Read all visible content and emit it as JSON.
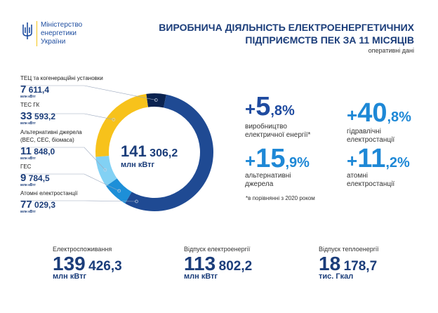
{
  "header": {
    "logo_lines": [
      "Міністерство",
      "енергетики",
      "України"
    ],
    "title_lines": [
      "ВИРОБНИЧА ДІЯЛЬНІСТЬ ЕЛЕКТРОЕНЕРГЕТИЧНИХ",
      "ПІДПРИЄМСТВ ПЕК ЗА 11 МІСЯЦІВ"
    ],
    "subtitle": "оперативні дані"
  },
  "chart_data": {
    "type": "pie",
    "variant": "donut",
    "center_value_big": "141",
    "center_value_small": "306,2",
    "center_unit": "млн кВтг",
    "unit": "млн кВтг",
    "slices": [
      {
        "label": "ТЕЦ та когенераційні установки",
        "value": 7611.4,
        "big": "7",
        "small": "611,4",
        "color": "#0b2350"
      },
      {
        "label": "Атомні електростанції",
        "value": 77029.3,
        "big": "77",
        "small": "029,3",
        "color": "#1f4a93"
      },
      {
        "label": "ГЕС",
        "value": 9784.5,
        "big": "9",
        "small": "784,5",
        "color": "#1d8fd8"
      },
      {
        "label": "Альтернативні джерела",
        "label2": "(ВЕС, СЕС, біомаса)",
        "value": 11848.0,
        "big": "11",
        "small": "848,0",
        "color": "#82d1f4"
      },
      {
        "label": "ТЕС ГК",
        "value": 33593.2,
        "big": "33",
        "small": "593,2",
        "color": "#f7c21b"
      }
    ]
  },
  "growth": [
    {
      "plus": "+",
      "n": "5",
      "d": ",8%",
      "cap": [
        "виробництво",
        "електричної енергії*"
      ],
      "color": "#1f4ba0"
    },
    {
      "plus": "+",
      "n": "40",
      "d": ",8%",
      "cap": [
        "гідравлічні",
        "електростанції"
      ],
      "color": "#1e88d6"
    },
    {
      "plus": "+",
      "n": "15",
      "d": ",9%",
      "cap": [
        "альтернативні",
        "джерела"
      ],
      "color": "#1e88d6"
    },
    {
      "plus": "+",
      "n": "11",
      "d": ",2%",
      "cap": [
        "атомні",
        "електростанції"
      ],
      "color": "#1e88d6"
    }
  ],
  "footnote": "*в порівнянні з 2020 роком",
  "kpis": [
    {
      "label": "Електроспоживання",
      "big": "139",
      "small": "426,3",
      "unit": "млн кВтг"
    },
    {
      "label": "Відпуск електроенергії",
      "big": "113",
      "small": "802,2",
      "unit": "млн кВтг"
    },
    {
      "label": "Відпуск теплоенергії",
      "big": "18",
      "small": "178,7",
      "unit": "тис. Гкал"
    }
  ]
}
